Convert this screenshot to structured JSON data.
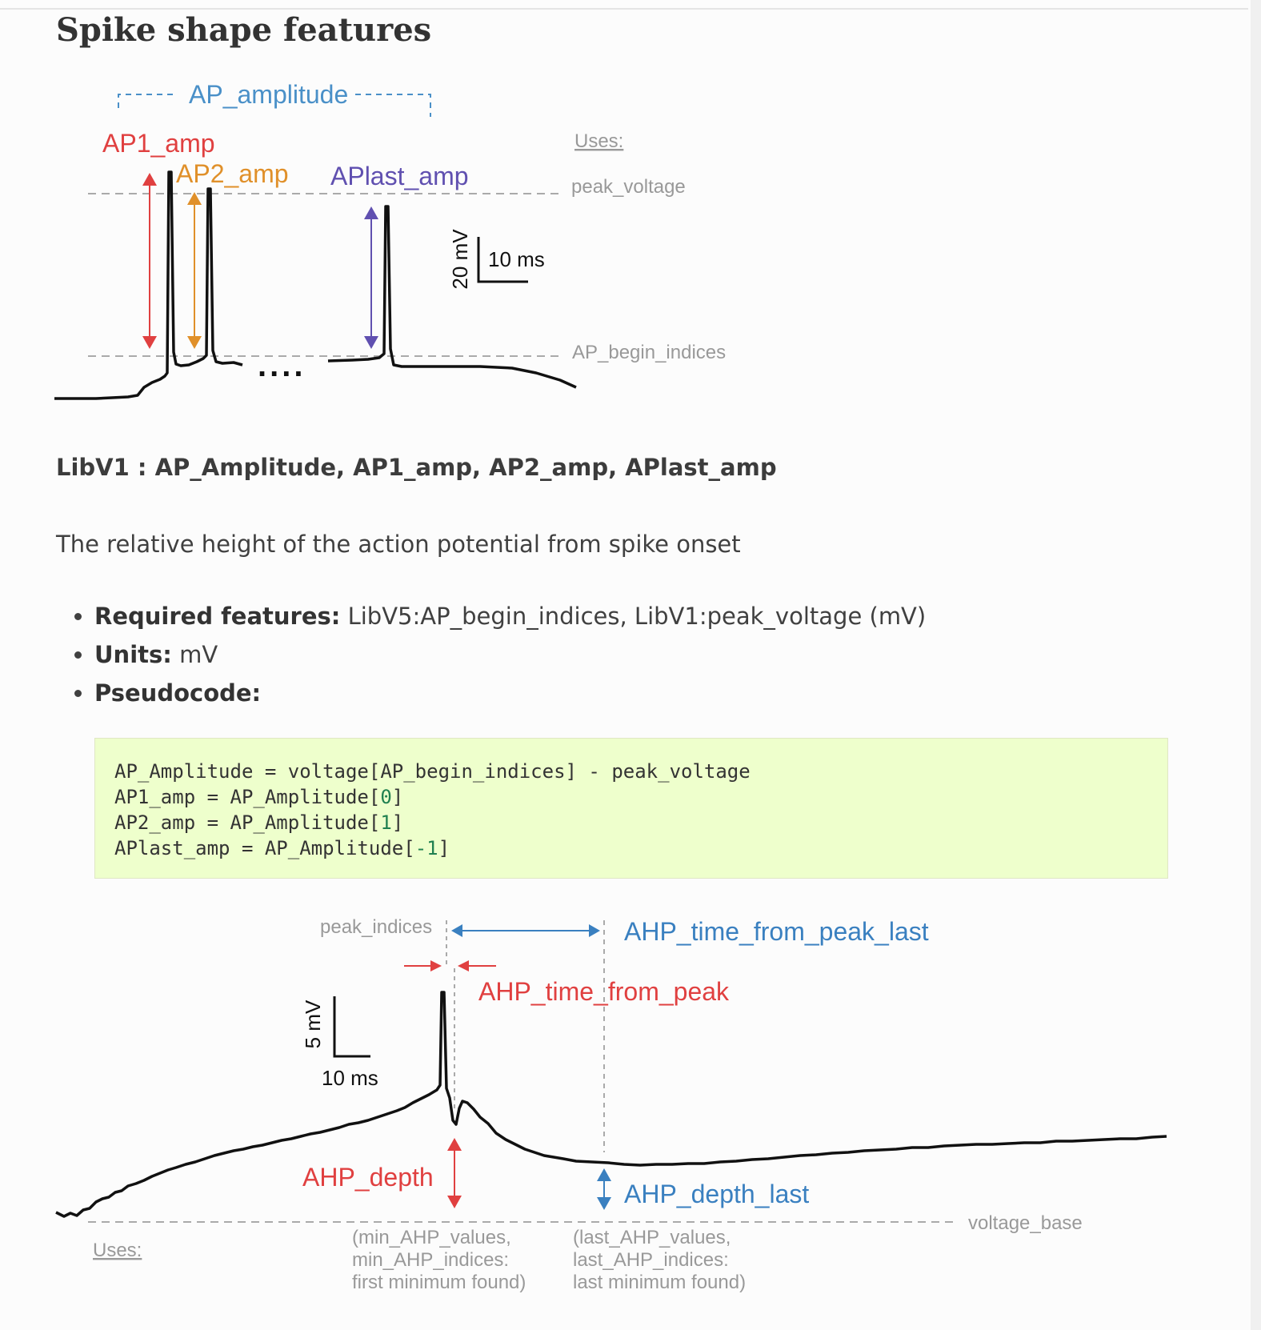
{
  "section_title": "Spike shape features",
  "figure1": {
    "labels": {
      "ap_amplitude": "AP_amplitude",
      "ap1_amp": "AP1_amp",
      "ap2_amp": "AP2_amp",
      "aplast_amp": "APlast_amp",
      "uses": "Uses:",
      "peak_voltage": "peak_voltage",
      "ap_begin_indices": "AP_begin_indices",
      "scale_v": "20 mV",
      "scale_t": "10 ms",
      "ellipsis": "...."
    },
    "colors": {
      "ap_amplitude": "#4a90c8",
      "ap1": "#e04040",
      "ap2": "#e0902a",
      "aplast": "#6050b0",
      "annotation": "#999999"
    }
  },
  "feature": {
    "header": "LibV1 : AP_Amplitude, AP1_amp, AP2_amp, APlast_amp",
    "description": "The relative height of the action potential from spike onset",
    "required_label": "Required features:",
    "required_value": " LibV5:AP_begin_indices, LibV1:peak_voltage (mV)",
    "units_label": "Units:",
    "units_value": " mV",
    "pseudocode_label": "Pseudocode:",
    "code": {
      "line1": "AP_Amplitude = voltage[AP_begin_indices] - peak_voltage",
      "line2_pre": "AP1_amp = AP_Amplitude[",
      "line2_num": "0",
      "line2_post": "]",
      "line3_pre": "AP2_amp = AP_Amplitude[",
      "line3_num": "1",
      "line3_post": "]",
      "line4_pre": "APlast_amp = AP_Amplitude[",
      "line4_num": "-1",
      "line4_post": "]"
    }
  },
  "figure2": {
    "labels": {
      "peak_indices": "peak_indices",
      "ahp_time_from_peak_last": "AHP_time_from_peak_last",
      "ahp_time_from_peak": "AHP_time_from_peak",
      "scale_v": "5 mV",
      "scale_t": "10 ms",
      "ahp_depth": "AHP_depth",
      "ahp_depth_last": "AHP_depth_last",
      "voltage_base": "voltage_base",
      "uses": "Uses:",
      "min_line1": "(min_AHP_values,",
      "min_line2": "min_AHP_indices:",
      "min_line3": "first minimum found)",
      "last_line1": "(last_AHP_values,",
      "last_line2": "last_AHP_indices:",
      "last_line3": "last minimum found)"
    },
    "colors": {
      "blue": "#3a80c0",
      "red": "#e04040",
      "annotation": "#999999"
    }
  }
}
